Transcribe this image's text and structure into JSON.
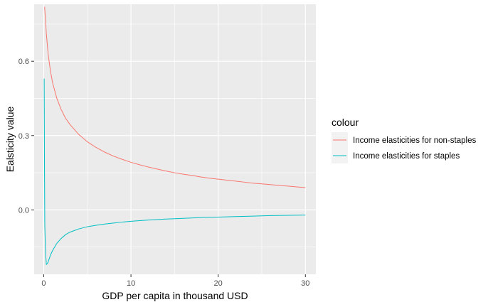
{
  "chart_data": {
    "type": "line",
    "xlabel": "GDP per capita in thousand USD",
    "ylabel": "Ealsticity value",
    "xlim": [
      -1.1,
      31.2
    ],
    "ylim": [
      -0.26,
      0.83
    ],
    "xticks": [
      0,
      10,
      20,
      30
    ],
    "xtick_labels": [
      "0",
      "10",
      "20",
      "30"
    ],
    "yticks": [
      0.0,
      0.3,
      0.6
    ],
    "ytick_labels": [
      "0.0",
      "0.3",
      "0.6"
    ],
    "grid": true,
    "legend": {
      "title": "colour",
      "position": "right"
    },
    "series": [
      {
        "name": "Income elasticities for non-staples",
        "color": "#F8766D",
        "x": [
          0.1,
          0.3,
          0.5,
          0.75,
          1,
          1.5,
          2,
          2.5,
          3,
          3.5,
          4,
          5,
          6,
          7,
          8,
          9,
          10,
          11,
          12,
          13,
          14,
          15,
          16,
          17,
          18,
          19,
          20,
          21,
          22,
          23,
          24,
          25,
          26,
          27,
          28,
          29,
          30
        ],
        "y": [
          0.82,
          0.71,
          0.63,
          0.565,
          0.515,
          0.45,
          0.405,
          0.37,
          0.345,
          0.325,
          0.305,
          0.275,
          0.252,
          0.233,
          0.217,
          0.204,
          0.192,
          0.182,
          0.173,
          0.165,
          0.157,
          0.15,
          0.144,
          0.139,
          0.133,
          0.128,
          0.124,
          0.12,
          0.116,
          0.112,
          0.108,
          0.105,
          0.102,
          0.099,
          0.096,
          0.093,
          0.09
        ]
      },
      {
        "name": "Income elasticities for staples",
        "color": "#00BFC4",
        "x": [
          0.05,
          0.08,
          0.12,
          0.2,
          0.3,
          0.45,
          0.6,
          0.8,
          1,
          1.5,
          2,
          2.5,
          3,
          4,
          5,
          6,
          7,
          8,
          9,
          10,
          12,
          14,
          16,
          18,
          20,
          22,
          24,
          26,
          28,
          30
        ],
        "y": [
          0.53,
          0.22,
          -0.06,
          -0.17,
          -0.22,
          -0.215,
          -0.2,
          -0.18,
          -0.165,
          -0.135,
          -0.115,
          -0.1,
          -0.09,
          -0.077,
          -0.068,
          -0.062,
          -0.057,
          -0.053,
          -0.049,
          -0.046,
          -0.041,
          -0.037,
          -0.034,
          -0.031,
          -0.029,
          -0.027,
          -0.025,
          -0.023,
          -0.022,
          -0.021
        ]
      }
    ]
  }
}
